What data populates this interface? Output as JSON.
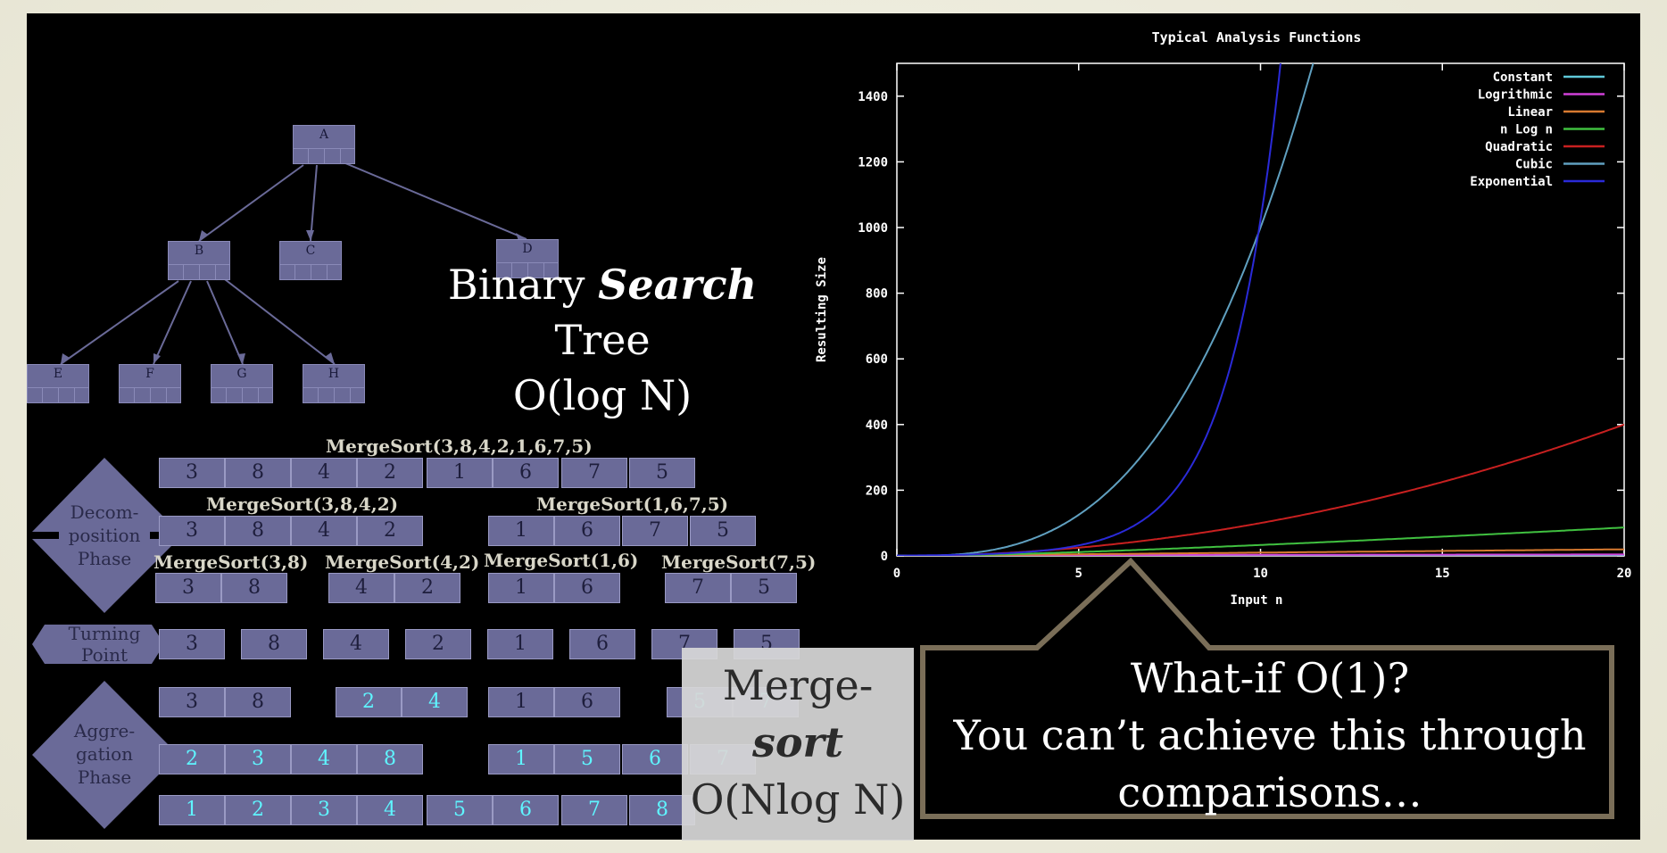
{
  "tree": {
    "nodes": [
      {
        "label": "A"
      },
      {
        "label": "B"
      },
      {
        "label": "C"
      },
      {
        "label": "D"
      },
      {
        "label": "E"
      },
      {
        "label": "F"
      },
      {
        "label": "G"
      },
      {
        "label": "H"
      }
    ],
    "caption": [
      "Binary ",
      "Search",
      "Tree",
      "O(log N)"
    ]
  },
  "mergesort": {
    "levels": [
      {
        "label": "MergeSort(3,8,4,2,1,6,7,5)"
      },
      {
        "label": "MergeSort(3,8,4,2)"
      },
      {
        "label": "MergeSort(1,6,7,5)"
      },
      {
        "label": "MergeSort(3,8)"
      },
      {
        "label": "MergeSort(4,2)"
      },
      {
        "label": "MergeSort(1,6)"
      },
      {
        "label": "MergeSort(7,5)"
      }
    ],
    "rows": {
      "r1": [
        "3",
        "8",
        "4",
        "2",
        "1",
        "6",
        "7",
        "5"
      ],
      "r2": [
        "3",
        "8",
        "4",
        "2",
        "1",
        "6",
        "7",
        "5"
      ],
      "r3": [
        "3",
        "8",
        "4",
        "2",
        "1",
        "6",
        "7",
        "5"
      ],
      "r4": [
        "3",
        "8",
        "4",
        "2",
        "1",
        "6",
        "7",
        "5"
      ],
      "r5": [
        "3",
        "8",
        "2",
        "4",
        "1",
        "6",
        "5",
        "7"
      ],
      "r6": [
        "2",
        "3",
        "4",
        "8",
        "1",
        "5",
        "6",
        "7"
      ],
      "r7": [
        "1",
        "2",
        "3",
        "4",
        "5",
        "6",
        "7",
        "8"
      ]
    },
    "phases": {
      "decomposition": [
        "Decom-",
        "position",
        "Phase"
      ],
      "turning": [
        "Turning",
        "Point"
      ],
      "aggregation": [
        "Aggre-",
        "gation",
        "Phase"
      ]
    },
    "caption": [
      "Merge-",
      "sort",
      "O(Nlog N)"
    ]
  },
  "chart_data": {
    "type": "line",
    "title": "Typical Analysis Functions",
    "xlabel": "Input n",
    "ylabel": "Resulting Size",
    "xlim": [
      0,
      20
    ],
    "ylim": [
      0,
      1500
    ],
    "xticks": [
      "0",
      "5",
      "10",
      "15",
      "20"
    ],
    "yticks": [
      "0",
      "200",
      "400",
      "600",
      "800",
      "1000",
      "1200",
      "1400"
    ],
    "legend_position": "top-right",
    "series": [
      {
        "name": "Constant",
        "color": "#5fc8d8",
        "formula": "constant",
        "x": [
          0,
          20
        ],
        "y": [
          1,
          1
        ]
      },
      {
        "name": "Logrithmic",
        "color": "#d040d8",
        "formula": "log",
        "x": [
          1,
          5,
          10,
          15,
          20
        ],
        "y": [
          0,
          2.3,
          3.3,
          3.9,
          4.3
        ]
      },
      {
        "name": "Linear",
        "color": "#d87a30",
        "formula": "linear",
        "x": [
          0,
          20
        ],
        "y": [
          0,
          20
        ]
      },
      {
        "name": "n Log n",
        "color": "#40c040",
        "formula": "nlogn",
        "x": [
          1,
          5,
          10,
          15,
          20
        ],
        "y": [
          0,
          12,
          33,
          59,
          86
        ]
      },
      {
        "name": "Quadratic",
        "color": "#c82020",
        "formula": "quadratic",
        "x": [
          0,
          5,
          10,
          15,
          20
        ],
        "y": [
          0,
          25,
          100,
          225,
          400
        ]
      },
      {
        "name": "Cubic",
        "color": "#60a0c0",
        "formula": "cubic",
        "x": [
          0,
          5,
          10,
          11.4
        ],
        "y": [
          0,
          125,
          1000,
          1500
        ]
      },
      {
        "name": "Exponential",
        "color": "#2a2ad8",
        "formula": "exponential",
        "x": [
          0,
          5,
          8,
          10,
          10.55
        ],
        "y": [
          1,
          32,
          256,
          1024,
          1500
        ]
      }
    ]
  },
  "callout": {
    "lines": [
      "What-if O(1)?",
      "You can’t achieve this through",
      "comparisons…"
    ]
  },
  "colors": {
    "background": "#ecebdb",
    "panel": "#000000",
    "node_fill": "#6a6a98",
    "callout_border": "#7a6e58",
    "sorted_text": "#5ff5ff"
  }
}
